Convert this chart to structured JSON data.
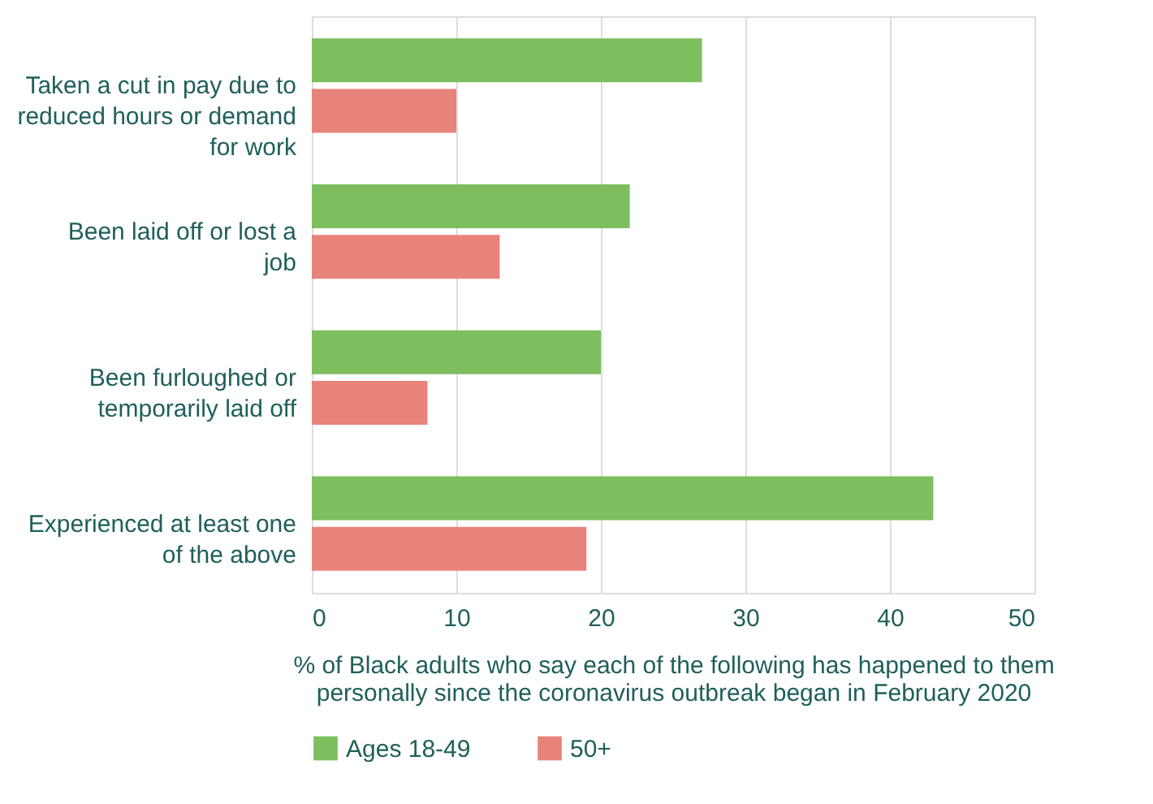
{
  "chart_data": {
    "type": "bar",
    "orientation": "horizontal",
    "categories": [
      "Taken a cut in pay due to reduced hours or demand for work",
      "Been laid off or lost a job",
      "Been furloughed or temporarily laid off",
      "Experienced at least one of the above"
    ],
    "series": [
      {
        "name": "Ages 18-49",
        "color": "#7dbe5f",
        "values": [
          27,
          22,
          20,
          43
        ]
      },
      {
        "name": "50+",
        "color": "#e8837a",
        "values": [
          10,
          13,
          8,
          19
        ]
      }
    ],
    "xlabel": "% of Black adults who say each of the following has happened to them personally since the coronavirus outbreak began in February 2020",
    "xlim": [
      0,
      50
    ],
    "xticks": [
      0,
      10,
      20,
      30,
      40,
      50
    ],
    "grid": "x",
    "legend": "bottom"
  }
}
